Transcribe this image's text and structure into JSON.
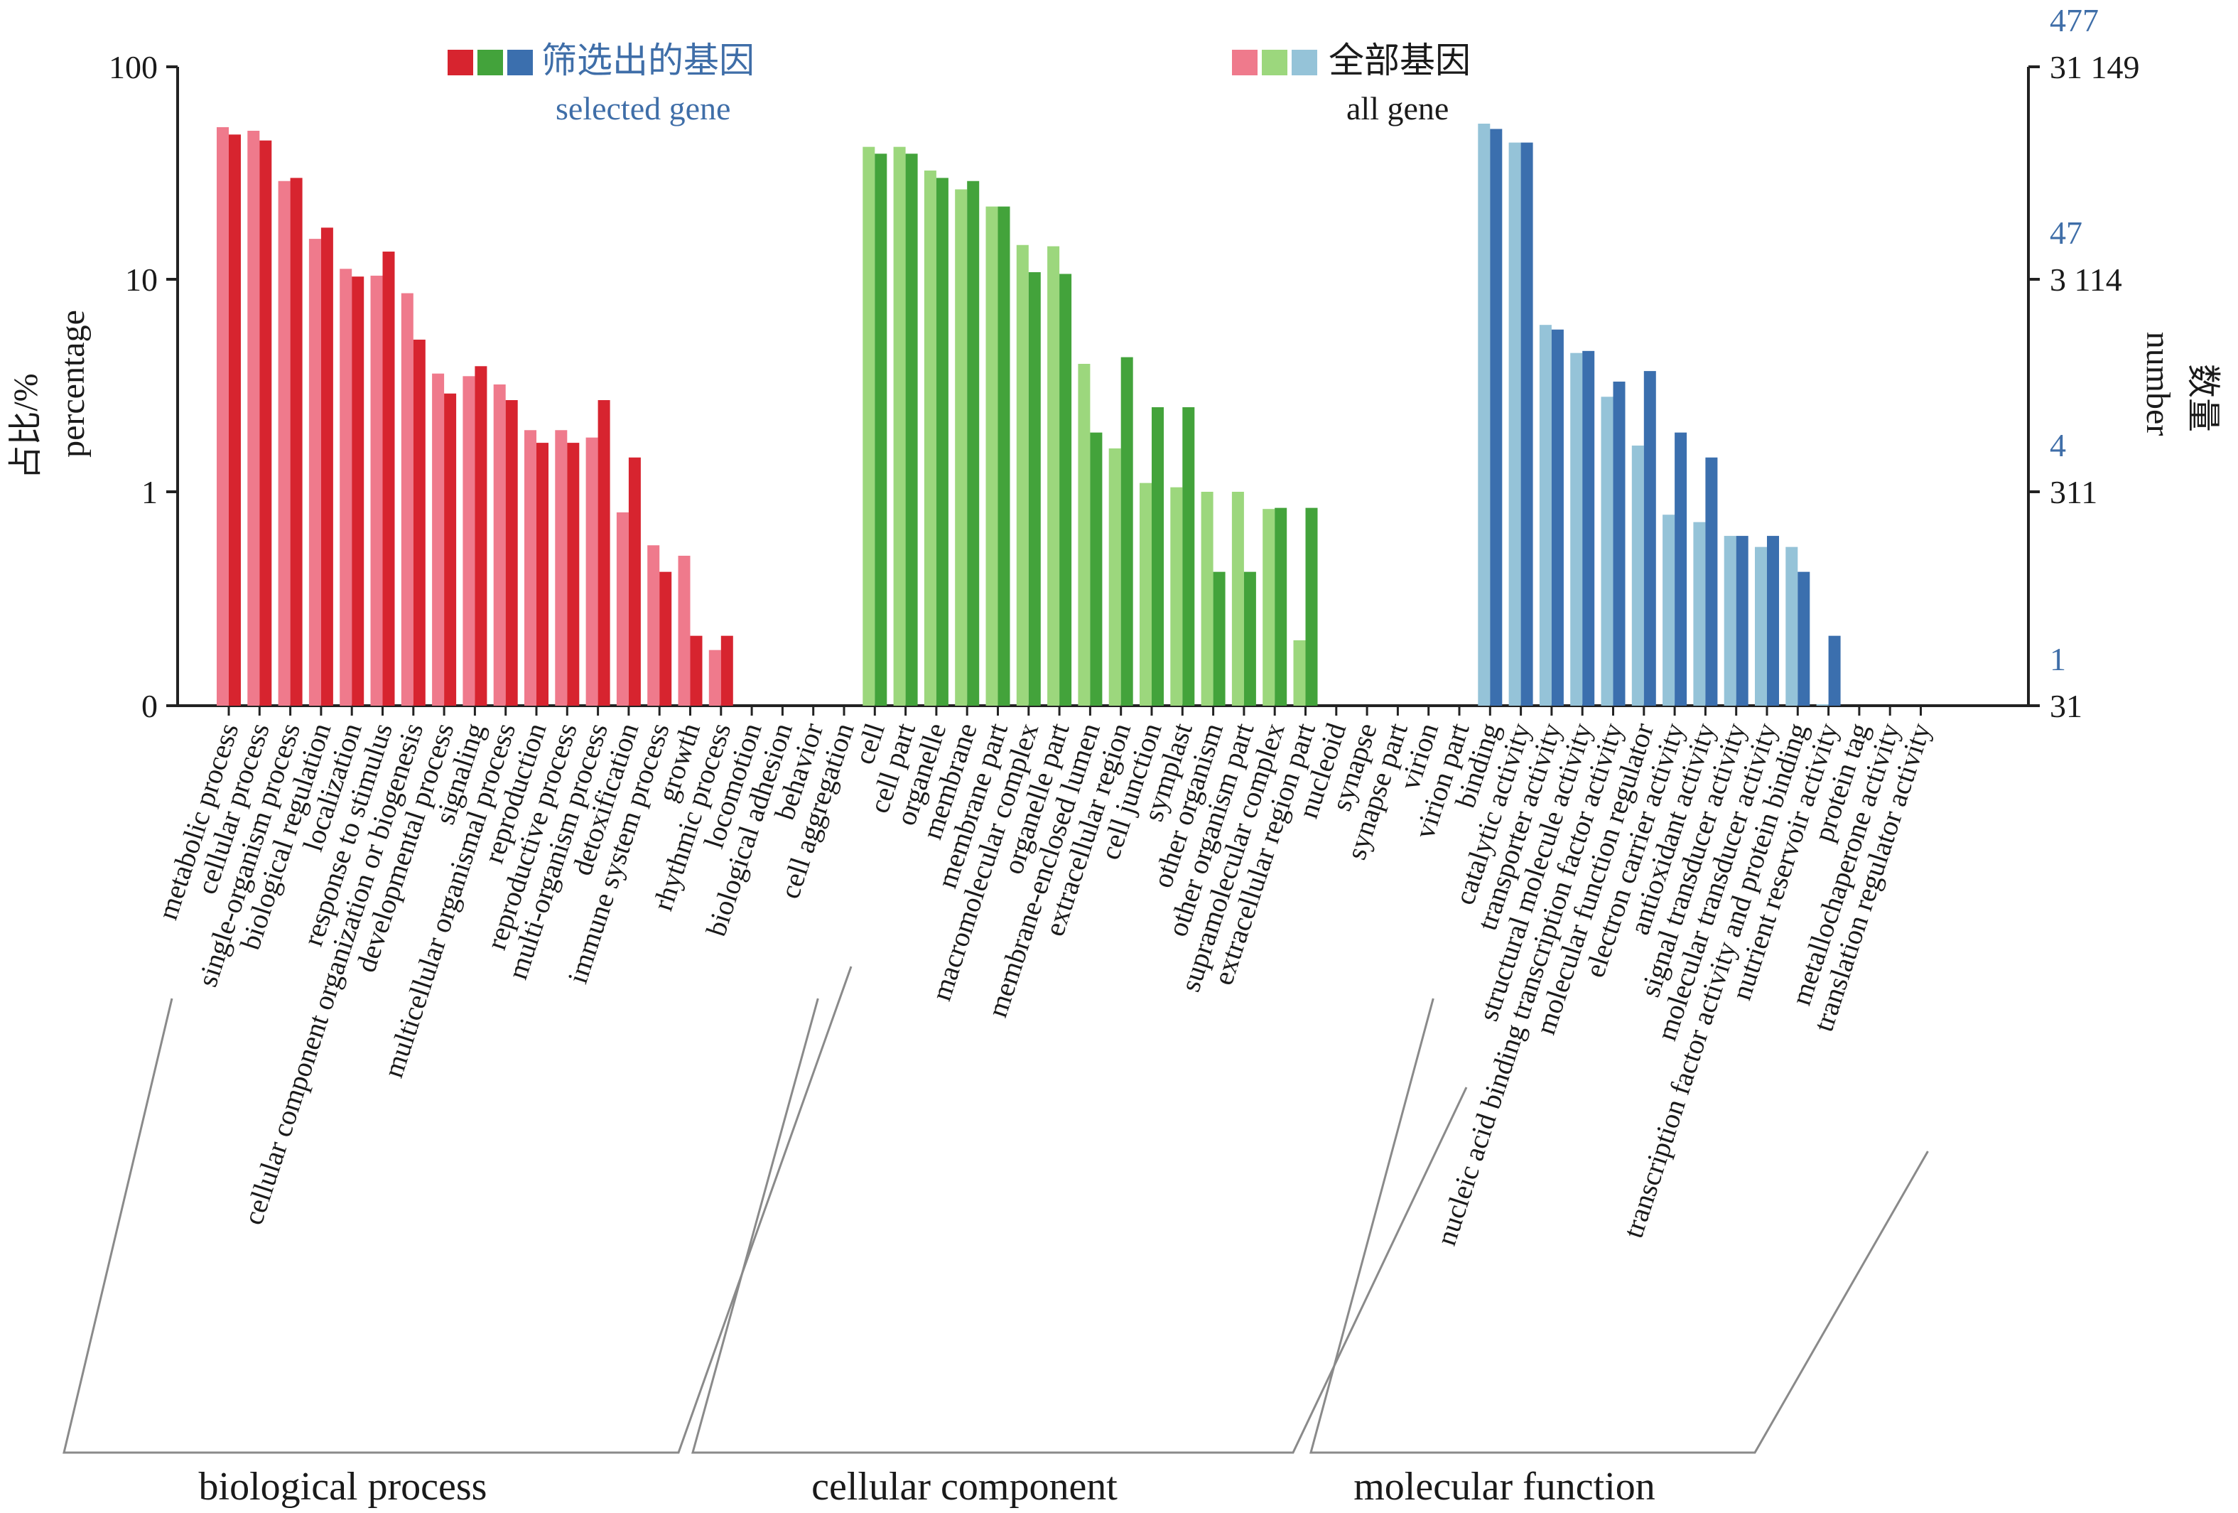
{
  "chart_data": {
    "type": "bar",
    "y_scale": "log",
    "ylabel_cn": "占比/%",
    "ylabel_en": "percentage",
    "y2label_cn": "数量",
    "y2label_en": "number",
    "y_ticks": [
      "100",
      "10",
      "1",
      "0"
    ],
    "y2_ticks_all": [
      "31 149",
      "3 114",
      "311",
      "31"
    ],
    "y2_ticks_selected": [
      "477",
      "47",
      "4",
      "1"
    ],
    "legend": {
      "selected_cn": "筛选出的基因",
      "selected_en": "selected gene",
      "all_cn": "全部基因",
      "all_en": "all gene"
    },
    "colors": {
      "bp_selected": "#d7242f",
      "bp_all": "#ef7a8c",
      "cc_selected": "#43a33b",
      "cc_all": "#9cd77d",
      "mf_selected": "#3b6fae",
      "mf_all": "#95c3d8",
      "selected_label": "#3f6ea8"
    },
    "groups": [
      {
        "name": "biological process",
        "key": "bp",
        "categories": [
          {
            "label": "metabolic process",
            "all": 52,
            "selected": 48
          },
          {
            "label": "cellular process",
            "all": 50,
            "selected": 45
          },
          {
            "label": "single-organism process",
            "all": 29,
            "selected": 30
          },
          {
            "label": "biological regulation",
            "all": 15.5,
            "selected": 17.5
          },
          {
            "label": "localization",
            "all": 11.2,
            "selected": 10.3
          },
          {
            "label": "response to stimulus",
            "all": 10.4,
            "selected": 13.5
          },
          {
            "label": "cellular component organization or biogenesis",
            "all": 8.6,
            "selected": 5.2
          },
          {
            "label": "developmental process",
            "all": 3.6,
            "selected": 2.9
          },
          {
            "label": "signaling",
            "all": 3.5,
            "selected": 3.9
          },
          {
            "label": "multicellular organismal process",
            "all": 3.2,
            "selected": 2.7
          },
          {
            "label": "reproduction",
            "all": 1.95,
            "selected": 1.7
          },
          {
            "label": "reproductive process",
            "all": 1.95,
            "selected": 1.7
          },
          {
            "label": "multi-organism process",
            "all": 1.8,
            "selected": 2.7
          },
          {
            "label": "detoxification",
            "all": 0.8,
            "selected": 1.45
          },
          {
            "label": "immune system process",
            "all": 0.56,
            "selected": 0.42
          },
          {
            "label": "growth",
            "all": 0.5,
            "selected": 0.21
          },
          {
            "label": "rhythmic process",
            "all": 0.18,
            "selected": 0.21
          },
          {
            "label": "locomotion",
            "all": 0.03,
            "selected": null
          },
          {
            "label": "biological adhesion",
            "all": null,
            "selected": null
          },
          {
            "label": "behavior",
            "all": null,
            "selected": null
          },
          {
            "label": "cell aggregation",
            "all": null,
            "selected": null
          }
        ]
      },
      {
        "name": "cellular component",
        "key": "cc",
        "categories": [
          {
            "label": "cell",
            "all": 42,
            "selected": 39
          },
          {
            "label": "cell part",
            "all": 42,
            "selected": 39
          },
          {
            "label": "organelle",
            "all": 32.5,
            "selected": 30
          },
          {
            "label": "membrane",
            "all": 26.5,
            "selected": 29
          },
          {
            "label": "membrane part",
            "all": 22,
            "selected": 22
          },
          {
            "label": "macromolecular complex",
            "all": 14.5,
            "selected": 10.8
          },
          {
            "label": "organelle part",
            "all": 14.3,
            "selected": 10.6
          },
          {
            "label": "membrane-enclosed lumen",
            "all": 4,
            "selected": 1.9
          },
          {
            "label": "extracellular region",
            "all": 1.6,
            "selected": 4.3
          },
          {
            "label": "cell junction",
            "all": 1.1,
            "selected": 2.5
          },
          {
            "label": "symplast",
            "all": 1.05,
            "selected": 2.5
          },
          {
            "label": "other organism",
            "all": 1,
            "selected": 0.42
          },
          {
            "label": "other organism part",
            "all": 1,
            "selected": 0.42
          },
          {
            "label": "supramolecular complex",
            "all": 0.83,
            "selected": 0.84
          },
          {
            "label": "extracellular region part",
            "all": 0.2,
            "selected": 0.84
          },
          {
            "label": "nucleoid",
            "all": null,
            "selected": null
          },
          {
            "label": "synapse",
            "all": null,
            "selected": null
          },
          {
            "label": "synapse part",
            "all": null,
            "selected": null
          },
          {
            "label": "virion",
            "all": null,
            "selected": null
          },
          {
            "label": "virion part",
            "all": null,
            "selected": null
          }
        ]
      },
      {
        "name": "molecular function",
        "key": "mf",
        "categories": [
          {
            "label": "binding",
            "all": 54,
            "selected": 51
          },
          {
            "label": "catalytic activity",
            "all": 44,
            "selected": 44
          },
          {
            "label": "transporter activity",
            "all": 6.1,
            "selected": 5.8
          },
          {
            "label": "structural molecule activity",
            "all": 4.5,
            "selected": 4.6
          },
          {
            "label": "nucleic acid binding transcription factor activity",
            "all": 2.8,
            "selected": 3.3
          },
          {
            "label": "molecular function regulator",
            "all": 1.65,
            "selected": 3.7
          },
          {
            "label": "electron carrier activity",
            "all": 0.78,
            "selected": 1.9
          },
          {
            "label": "antioxidant activity",
            "all": 0.72,
            "selected": 1.45
          },
          {
            "label": "signal transducer activity",
            "all": 0.62,
            "selected": 0.62
          },
          {
            "label": "molecular transducer activity",
            "all": 0.55,
            "selected": 0.62
          },
          {
            "label": "transcription factor activity and protein binding",
            "all": 0.55,
            "selected": 0.42
          },
          {
            "label": "nutrient reservoir activity",
            "all": 0.1,
            "selected": 0.21
          },
          {
            "label": "protein tag",
            "all": null,
            "selected": null
          },
          {
            "label": "metallochaperone activity",
            "all": null,
            "selected": null
          },
          {
            "label": "translation regulator activity",
            "all": null,
            "selected": null
          }
        ]
      }
    ]
  }
}
